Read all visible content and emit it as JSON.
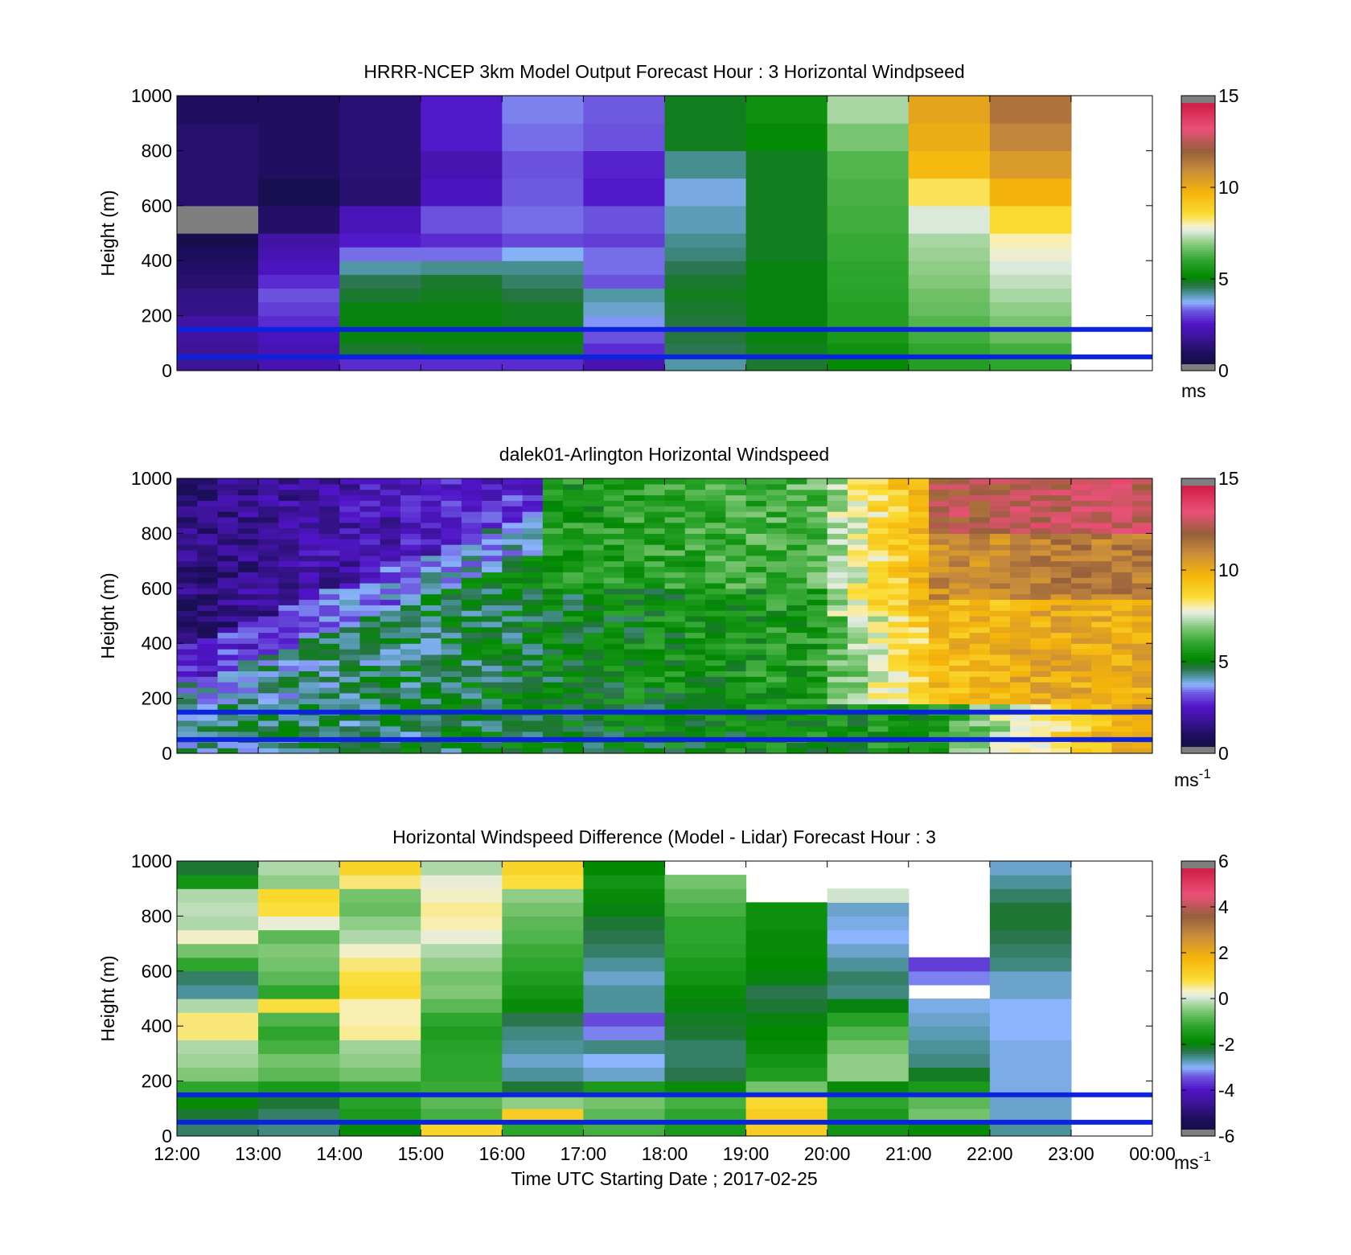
{
  "figure": {
    "x_ticks": [
      "12:00",
      "13:00",
      "14:00",
      "15:00",
      "16:00",
      "17:00",
      "18:00",
      "19:00",
      "20:00",
      "21:00",
      "22:00",
      "23:00",
      "00:00"
    ],
    "xlabel": "Time UTC  Starting Date ; 2017-02-25",
    "hub_lines_m": [
      150,
      50
    ],
    "hub_line_color": "#0b22e0"
  },
  "chart_data": [
    {
      "type": "heatmap",
      "title": "HRRR-NCEP 3km Model Output   Forecast Hour : 3 Horizontal Windpseed",
      "ylabel": "Height (m)",
      "ylim": [
        0,
        1000
      ],
      "y_ticks": [
        "0",
        "200",
        "400",
        "600",
        "800",
        "1000"
      ],
      "colorbar": {
        "range": [
          0,
          15
        ],
        "ticks": [
          "0",
          "5",
          "10",
          "15"
        ],
        "unit": "ms"
      },
      "columns_hour_utc": [
        12,
        13,
        14,
        15,
        16,
        17,
        18,
        19,
        20,
        21,
        22,
        23
      ],
      "layers_m": [
        [
          0,
          50
        ],
        [
          50,
          100
        ],
        [
          100,
          150
        ],
        [
          150,
          200
        ],
        [
          200,
          250
        ],
        [
          250,
          300
        ],
        [
          300,
          350
        ],
        [
          350,
          400
        ],
        [
          400,
          450
        ],
        [
          450,
          500
        ],
        [
          500,
          600
        ],
        [
          600,
          700
        ],
        [
          700,
          800
        ],
        [
          800,
          900
        ],
        [
          900,
          1000
        ]
      ],
      "values": [
        [
          1.8,
          2.2,
          2.8,
          2.8,
          2.8,
          2.2,
          4.2,
          4.8,
          5.2,
          5.8,
          6.0,
          null
        ],
        [
          1.8,
          2.2,
          4.8,
          4.9,
          4.9,
          2.8,
          4.6,
          4.9,
          5.4,
          6.0,
          6.2,
          null
        ],
        [
          2.0,
          2.4,
          5.0,
          5.0,
          5.0,
          3.2,
          4.7,
          5.0,
          5.6,
          6.2,
          6.6,
          null
        ],
        [
          2.0,
          2.8,
          5.0,
          5.0,
          4.9,
          3.6,
          4.7,
          5.0,
          5.8,
          6.4,
          6.8,
          null
        ],
        [
          1.6,
          3.0,
          5.0,
          5.0,
          4.9,
          4.0,
          4.8,
          5.0,
          5.8,
          6.6,
          7.0,
          null
        ],
        [
          1.5,
          3.2,
          4.8,
          4.9,
          4.7,
          4.2,
          4.9,
          5.0,
          5.9,
          6.7,
          7.2,
          null
        ],
        [
          1.2,
          2.8,
          4.6,
          4.8,
          4.5,
          3.2,
          4.8,
          5.0,
          6.0,
          6.9,
          7.4,
          null
        ],
        [
          1.1,
          2.4,
          4.2,
          4.3,
          4.3,
          3.4,
          4.6,
          5.0,
          6.0,
          7.0,
          7.6,
          null
        ],
        [
          0.9,
          2.2,
          3.4,
          3.4,
          3.8,
          3.4,
          4.4,
          4.9,
          6.1,
          7.1,
          7.8,
          null
        ],
        [
          0.5,
          2.0,
          2.6,
          2.8,
          3.1,
          3.0,
          4.3,
          4.9,
          6.1,
          7.2,
          8.0,
          null
        ],
        [
          15.0,
          1.1,
          2.3,
          3.2,
          3.4,
          3.2,
          4.1,
          4.9,
          6.2,
          7.6,
          8.6,
          null
        ],
        [
          1.2,
          0.6,
          1.2,
          2.4,
          3.3,
          2.6,
          3.9,
          4.9,
          6.3,
          8.4,
          9.8,
          null
        ],
        [
          1.2,
          1.0,
          1.3,
          2.2,
          3.2,
          2.7,
          4.3,
          4.9,
          6.4,
          9.6,
          10.5,
          null
        ],
        [
          1.2,
          1.0,
          1.3,
          2.6,
          3.4,
          3.2,
          4.9,
          5.2,
          6.8,
          10.0,
          11.1,
          null
        ],
        [
          1.0,
          1.0,
          1.3,
          2.6,
          3.5,
          3.3,
          4.9,
          5.4,
          7.2,
          10.2,
          11.5,
          null
        ]
      ]
    },
    {
      "type": "heatmap",
      "title": "dalek01-Arlington  Horizontal Windspeed",
      "ylabel": "Height (m)",
      "ylim": [
        0,
        1000
      ],
      "y_ticks": [
        "0",
        "200",
        "400",
        "600",
        "800",
        "1000"
      ],
      "colorbar": {
        "range": [
          0,
          15
        ],
        "ticks": [
          "0",
          "5",
          "10",
          "15"
        ],
        "unit": "ms",
        "unit_superscript": "-1"
      },
      "time_range_utc": [
        "12:00",
        "23:50"
      ],
      "profile_interval_min": 15,
      "layer_depth_m": 20,
      "structure": "Winds increase with time: about 1-2 m/s in the upper layers before 15:00, about 5-6 m/s from 16:00 to 20:00, about 9-10 m/s after 20:00 and about 11-13 m/s above 600 m after 21:30; below about 400 m winds are about 4-6 m/s for most of the period."
    },
    {
      "type": "heatmap",
      "title": "Horizontal Windspeed Difference (Model - Lidar) Forecast Hour : 3",
      "ylabel": "Height (m)",
      "ylim": [
        0,
        1000
      ],
      "y_ticks": [
        "0",
        "200",
        "400",
        "600",
        "800",
        "1000"
      ],
      "colorbar": {
        "range": [
          -6,
          6
        ],
        "ticks": [
          "-6",
          "-4",
          "-2",
          "0",
          "2",
          "4",
          "6"
        ],
        "unit": "ms",
        "unit_superscript": "-1"
      },
      "columns_hour_utc": [
        12,
        13,
        14,
        15,
        16,
        17,
        18,
        19,
        20,
        21,
        22,
        23
      ],
      "layers_m": [
        [
          0,
          50
        ],
        [
          50,
          100
        ],
        [
          100,
          150
        ],
        [
          150,
          200
        ],
        [
          200,
          250
        ],
        [
          250,
          300
        ],
        [
          300,
          350
        ],
        [
          350,
          400
        ],
        [
          400,
          450
        ],
        [
          450,
          500
        ],
        [
          500,
          550
        ],
        [
          550,
          600
        ],
        [
          600,
          650
        ],
        [
          650,
          700
        ],
        [
          700,
          750
        ],
        [
          750,
          800
        ],
        [
          800,
          850
        ],
        [
          850,
          900
        ],
        [
          900,
          950
        ],
        [
          950,
          1000
        ]
      ],
      "values": [
        [
          -2.4,
          -2.5,
          -1.8,
          1.0,
          -1.2,
          -1.0,
          -1.5,
          1.2,
          -1.6,
          -1.8,
          -2.6,
          null
        ],
        [
          -2.2,
          -2.4,
          -1.5,
          -1.0,
          1.2,
          -0.8,
          -1.2,
          1.2,
          -1.5,
          -0.6,
          -2.8,
          null
        ],
        [
          -1.8,
          -2.2,
          -1.3,
          -0.8,
          -0.4,
          -0.6,
          -1.0,
          0.9,
          -1.2,
          -0.8,
          -2.8,
          null
        ],
        [
          -1.2,
          -1.5,
          -1.2,
          -1.1,
          -2.2,
          -1.5,
          -1.8,
          -0.6,
          -1.8,
          -1.5,
          -2.9,
          null
        ],
        [
          -0.5,
          -0.8,
          -0.6,
          -1.2,
          -2.6,
          -2.8,
          -2.3,
          -1.4,
          -0.4,
          -2.1,
          -2.9,
          null
        ],
        [
          -0.3,
          -0.6,
          -0.4,
          -1.2,
          -2.8,
          -3.0,
          -2.4,
          -1.6,
          -0.4,
          -2.5,
          -2.9,
          null
        ],
        [
          -0.2,
          -1.0,
          -0.3,
          -1.3,
          -2.6,
          -2.5,
          -2.4,
          -1.8,
          -0.6,
          -2.6,
          -2.9,
          null
        ],
        [
          0.6,
          -1.2,
          0.5,
          -1.4,
          -2.5,
          -3.2,
          -2.2,
          -1.9,
          -0.9,
          -2.7,
          -3.0,
          null
        ],
        [
          0.6,
          -0.9,
          0.4,
          -1.2,
          -2.3,
          -3.5,
          -2.1,
          -2.0,
          -1.3,
          -2.8,
          -3.0,
          null
        ],
        [
          -0.2,
          0.8,
          0.4,
          -0.8,
          -1.8,
          -2.6,
          -2.0,
          -2.2,
          -2.0,
          -2.9,
          -3.0,
          null
        ],
        [
          -2.6,
          -1.2,
          0.9,
          -0.5,
          -1.6,
          -2.6,
          -1.8,
          -2.3,
          -2.5,
          null,
          -2.8,
          null
        ],
        [
          -2.4,
          -0.8,
          0.8,
          -0.6,
          -1.4,
          -2.8,
          -1.6,
          -2.0,
          -2.4,
          -3.2,
          -2.8,
          null
        ],
        [
          -1.2,
          -0.6,
          0.6,
          -0.4,
          -1.2,
          -2.6,
          -1.5,
          -1.9,
          -2.6,
          -3.6,
          -2.5,
          null
        ],
        [
          -0.6,
          -0.5,
          0.3,
          -0.2,
          -1.1,
          -2.4,
          -1.3,
          -1.8,
          -2.8,
          null,
          -2.4,
          null
        ],
        [
          0.3,
          -0.8,
          -0.2,
          0.2,
          -0.9,
          -2.3,
          -1.2,
          -1.8,
          -3.0,
          null,
          -2.3,
          null
        ],
        [
          -0.2,
          0.2,
          -0.4,
          0.4,
          -0.8,
          -2.2,
          -1.2,
          -1.7,
          -2.9,
          null,
          -2.2,
          null
        ],
        [
          -0.1,
          0.8,
          -0.7,
          0.5,
          -0.6,
          -2.0,
          -1.0,
          -1.7,
          -2.8,
          null,
          -2.2,
          null
        ],
        [
          -0.2,
          0.9,
          -0.6,
          0.3,
          -0.4,
          -1.8,
          -0.8,
          null,
          0.0,
          null,
          -2.4,
          null
        ],
        [
          -1.6,
          -0.4,
          0.6,
          0.2,
          0.8,
          -1.6,
          -0.6,
          null,
          null,
          null,
          -2.6,
          null
        ],
        [
          -2.2,
          -0.2,
          1.0,
          -0.2,
          1.0,
          -1.9,
          null,
          null,
          null,
          null,
          -2.8,
          null
        ]
      ]
    }
  ]
}
